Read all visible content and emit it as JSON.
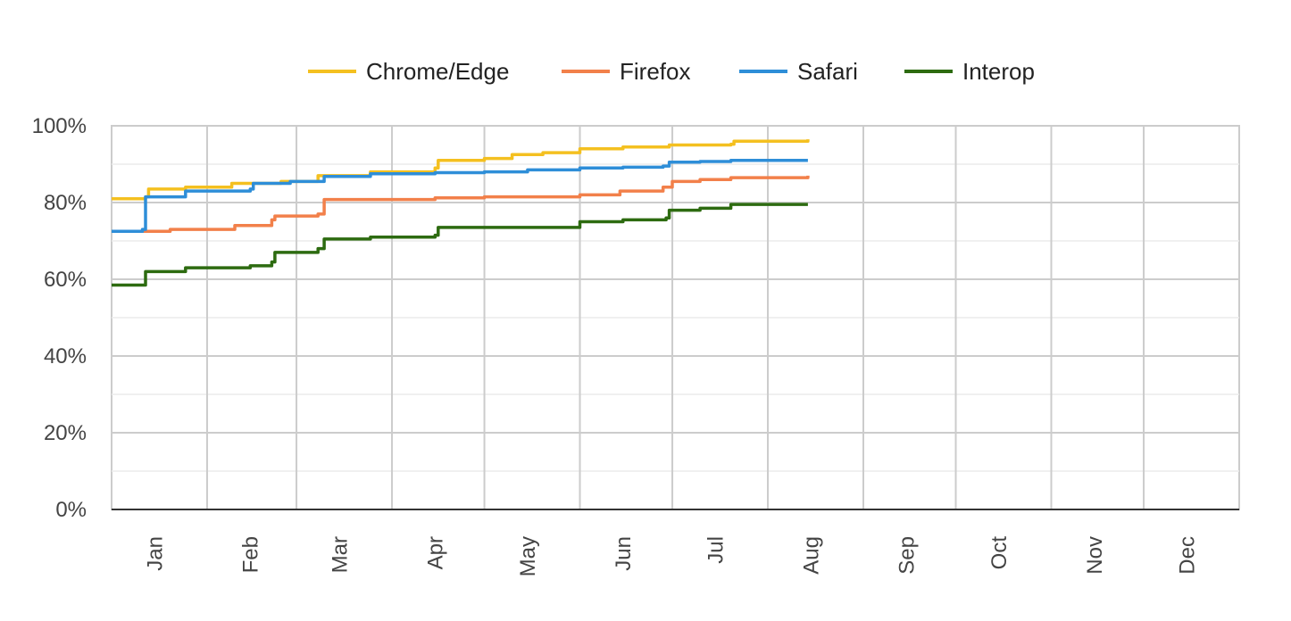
{
  "chart_data": {
    "type": "line",
    "title": "",
    "xlabel": "",
    "ylabel": "",
    "ylim": [
      0,
      100
    ],
    "xlim": [
      "2024-01-01",
      "2024-12-31"
    ],
    "y_ticks": [
      "0%",
      "20%",
      "40%",
      "60%",
      "80%",
      "100%"
    ],
    "y_tick_values": [
      0,
      20,
      40,
      60,
      80,
      100
    ],
    "x_tick_labels": [
      "Jan",
      "Feb",
      "Mar",
      "Apr",
      "May",
      "Jun",
      "Jul",
      "Aug",
      "Sep",
      "Oct",
      "Nov",
      "Dec"
    ],
    "x_tick_dates": [
      "2024-01-15",
      "2024-02-15",
      "2024-03-15",
      "2024-04-15",
      "2024-05-15",
      "2024-06-15",
      "2024-07-15",
      "2024-08-15",
      "2024-09-15",
      "2024-10-15",
      "2024-11-15",
      "2024-12-15"
    ],
    "month_gridlines": [
      "2024-02-01",
      "2024-03-01",
      "2024-04-01",
      "2024-05-01",
      "2024-06-01",
      "2024-07-01",
      "2024-08-01",
      "2024-09-01",
      "2024-10-01",
      "2024-11-01",
      "2024-12-01"
    ],
    "grid": true,
    "legend_position": "top",
    "series": [
      {
        "name": "Chrome/Edge",
        "color": "#f4c020",
        "x": [
          "2024-01-01",
          "2024-01-12",
          "2024-01-13",
          "2024-01-25",
          "2024-02-09",
          "2024-02-25",
          "2024-03-08",
          "2024-03-25",
          "2024-04-15",
          "2024-04-16",
          "2024-05-01",
          "2024-05-10",
          "2024-05-20",
          "2024-06-01",
          "2024-06-15",
          "2024-06-30",
          "2024-07-10",
          "2024-07-20",
          "2024-07-21",
          "2024-08-14"
        ],
        "y": [
          81.0,
          81.5,
          83.5,
          84.0,
          85.0,
          85.5,
          87.0,
          88.0,
          89.0,
          91.0,
          91.5,
          92.5,
          93.0,
          94.0,
          94.5,
          95.0,
          95.0,
          95.2,
          96.0,
          96.5
        ]
      },
      {
        "name": "Firefox",
        "color": "#f2804a",
        "x": [
          "2024-01-01",
          "2024-01-12",
          "2024-01-20",
          "2024-02-10",
          "2024-02-22",
          "2024-02-23",
          "2024-03-08",
          "2024-03-10",
          "2024-04-15",
          "2024-05-01",
          "2024-06-01",
          "2024-06-14",
          "2024-06-28",
          "2024-07-01",
          "2024-07-10",
          "2024-07-20",
          "2024-08-14"
        ],
        "y": [
          72.5,
          72.5,
          73.0,
          74.0,
          75.5,
          76.5,
          77.0,
          80.8,
          81.2,
          81.5,
          82.0,
          83.0,
          84.0,
          85.5,
          86.0,
          86.5,
          87.0
        ]
      },
      {
        "name": "Safari",
        "color": "#2e8ed8",
        "x": [
          "2024-01-01",
          "2024-01-11",
          "2024-01-12",
          "2024-01-25",
          "2024-02-15",
          "2024-02-16",
          "2024-02-28",
          "2024-03-10",
          "2024-03-25",
          "2024-04-15",
          "2024-05-01",
          "2024-05-15",
          "2024-06-01",
          "2024-06-15",
          "2024-06-28",
          "2024-06-30",
          "2024-07-10",
          "2024-07-20",
          "2024-08-14"
        ],
        "y": [
          72.5,
          73.0,
          81.5,
          83.0,
          83.5,
          85.0,
          85.5,
          86.8,
          87.5,
          87.8,
          88.0,
          88.5,
          89.0,
          89.2,
          89.5,
          90.5,
          90.7,
          91.0,
          91.0
        ]
      },
      {
        "name": "Interop",
        "color": "#2d6b10",
        "x": [
          "2024-01-01",
          "2024-01-11",
          "2024-01-12",
          "2024-01-25",
          "2024-02-09",
          "2024-02-15",
          "2024-02-22",
          "2024-02-23",
          "2024-03-08",
          "2024-03-10",
          "2024-03-25",
          "2024-04-15",
          "2024-04-16",
          "2024-05-01",
          "2024-05-15",
          "2024-06-01",
          "2024-06-15",
          "2024-06-29",
          "2024-06-30",
          "2024-07-10",
          "2024-07-20",
          "2024-08-14"
        ],
        "y": [
          58.5,
          58.5,
          62.0,
          63.0,
          63.0,
          63.5,
          64.5,
          67.0,
          68.0,
          70.5,
          71.0,
          71.5,
          73.5,
          73.5,
          73.5,
          75.0,
          75.5,
          76.0,
          78.0,
          78.5,
          79.5,
          79.5
        ]
      }
    ]
  }
}
